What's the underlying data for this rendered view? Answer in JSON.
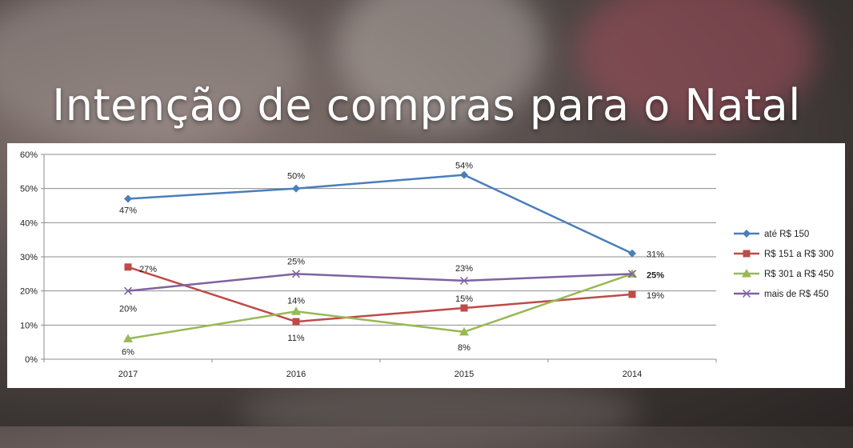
{
  "headline": "Intenção de compras  para o Natal",
  "colors": {
    "ate_150": "#4a7ebb",
    "r151_300": "#be4b48",
    "r301_450": "#98b954",
    "mais_450": "#7e62a1",
    "grid": "#8c8c8c"
  },
  "chart_data": {
    "type": "line",
    "title": "",
    "xlabel": "",
    "ylabel": "",
    "categories": [
      "2017",
      "2016",
      "2015",
      "2014"
    ],
    "ylim": [
      0,
      60
    ],
    "yticks": [
      "0%",
      "10%",
      "20%",
      "30%",
      "40%",
      "50%",
      "60%"
    ],
    "grid": true,
    "legend_position": "right",
    "series": [
      {
        "name": "até R$ 150",
        "marker": "diamond",
        "color": "#4a7ebb",
        "values": [
          47,
          50,
          54,
          31
        ],
        "labels": [
          "47%",
          "50%",
          "54%",
          "31%"
        ]
      },
      {
        "name": "R$ 151 a R$ 300",
        "marker": "square",
        "color": "#be4b48",
        "values": [
          27,
          11,
          15,
          19
        ],
        "labels": [
          "27%",
          "11%",
          "15%",
          "19%"
        ]
      },
      {
        "name": "R$ 301 a R$ 450",
        "marker": "triangle",
        "color": "#98b954",
        "values": [
          6,
          14,
          8,
          25
        ],
        "labels": [
          "6%",
          "14%",
          "8%",
          "25%"
        ]
      },
      {
        "name": "mais de R$ 450",
        "marker": "x",
        "color": "#7e62a1",
        "values": [
          20,
          25,
          23,
          25
        ],
        "labels": [
          "20%",
          "25%",
          "23%",
          ""
        ]
      }
    ]
  }
}
